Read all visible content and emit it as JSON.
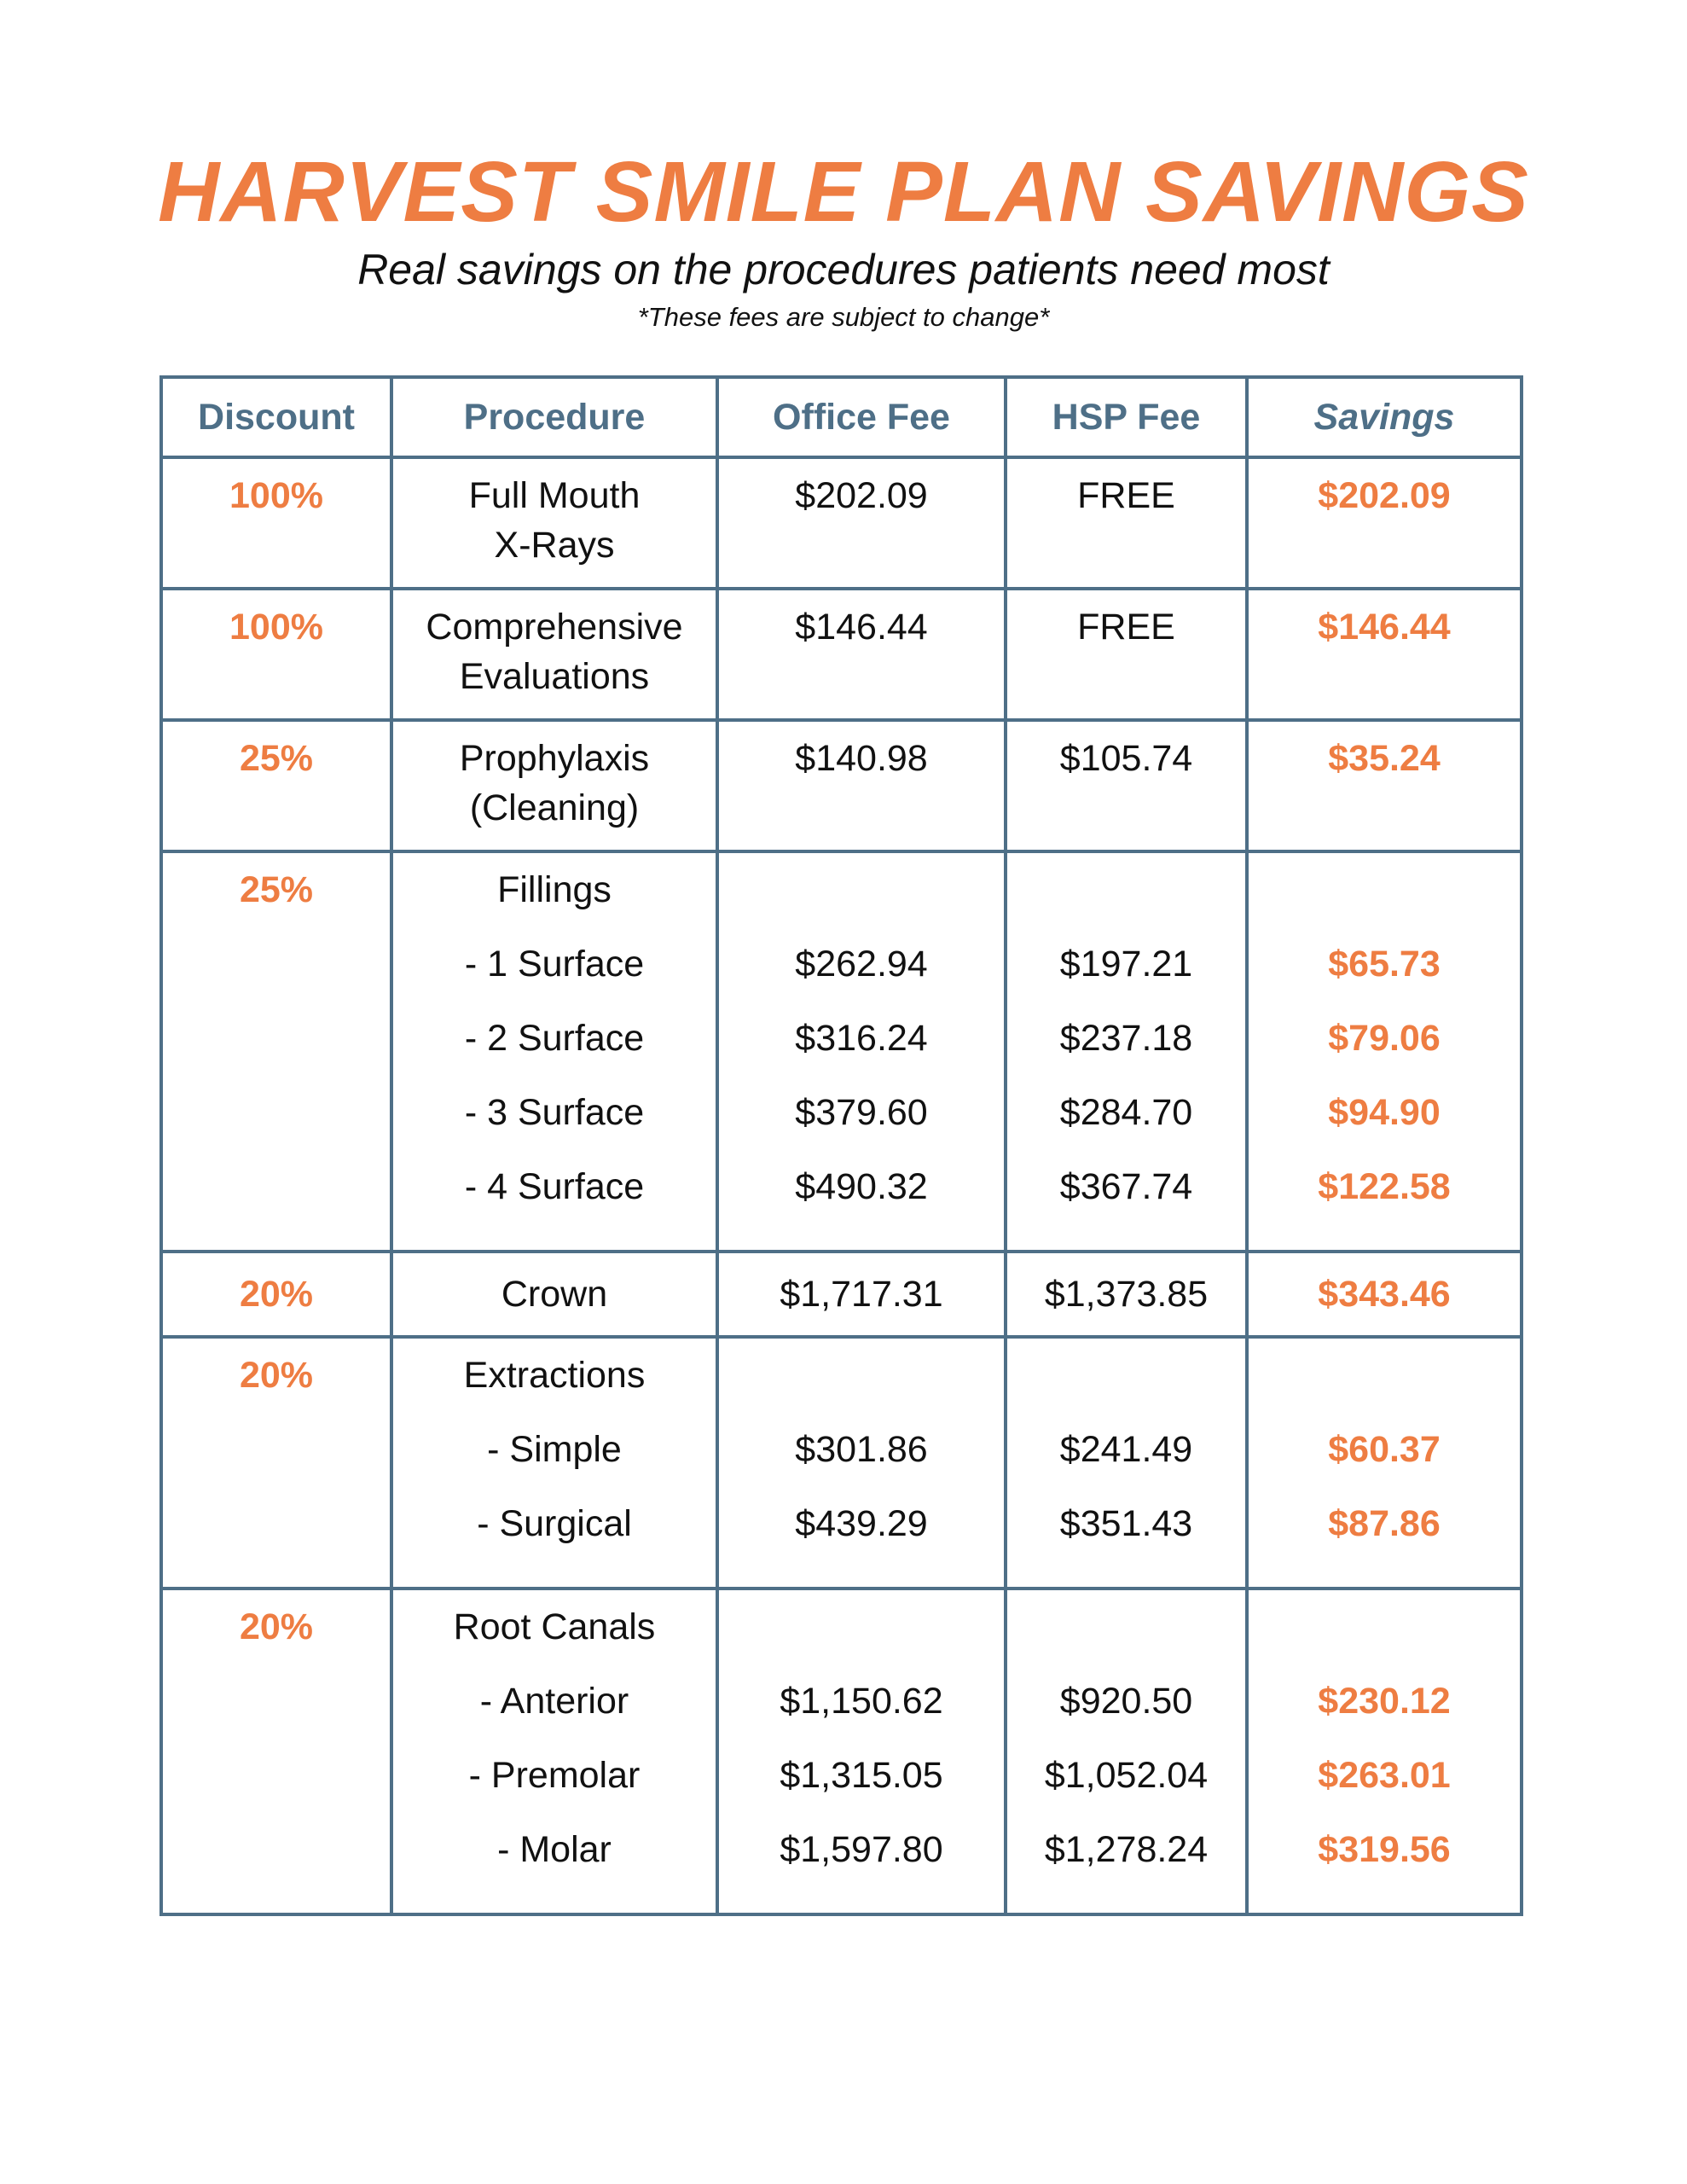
{
  "header": {
    "title": "HARVEST SMILE PLAN SAVINGS",
    "subtitle": "Real savings on the procedures patients need most",
    "note": "*These fees are subject to change*"
  },
  "table": {
    "columns": [
      "Discount",
      "Procedure",
      "Office Fee",
      "HSP Fee",
      "Savings"
    ],
    "rows": [
      {
        "discount": "100%",
        "procedure": [
          "Full Mouth",
          "X-Rays"
        ],
        "office_fee": "$202.09",
        "hsp_fee": "FREE",
        "savings": "$202.09"
      },
      {
        "discount": "100%",
        "procedure": [
          "Comprehensive",
          "Evaluations"
        ],
        "office_fee": "$146.44",
        "hsp_fee": "FREE",
        "savings": "$146.44"
      },
      {
        "discount": "25%",
        "procedure": [
          "Prophylaxis",
          "(Cleaning)"
        ],
        "office_fee": "$140.98",
        "hsp_fee": "$105.74",
        "savings": "$35.24"
      },
      {
        "discount": "25%",
        "procedure_title": "Fillings",
        "items": [
          {
            "label": "- 1 Surface",
            "office_fee": "$262.94",
            "hsp_fee": "$197.21",
            "savings": "$65.73"
          },
          {
            "label": "- 2 Surface",
            "office_fee": "$316.24",
            "hsp_fee": "$237.18",
            "savings": "$79.06"
          },
          {
            "label": "- 3 Surface",
            "office_fee": "$379.60",
            "hsp_fee": "$284.70",
            "savings": "$94.90"
          },
          {
            "label": "- 4 Surface",
            "office_fee": "$490.32",
            "hsp_fee": "$367.74",
            "savings": "$122.58"
          }
        ]
      },
      {
        "discount": "20%",
        "procedure": [
          "Crown"
        ],
        "office_fee": "$1,717.31",
        "hsp_fee": "$1,373.85",
        "savings": "$343.46"
      },
      {
        "discount": "20%",
        "procedure_title": "Extractions",
        "items": [
          {
            "label": "- Simple",
            "office_fee": "$301.86",
            "hsp_fee": "$241.49",
            "savings": "$60.37"
          },
          {
            "label": "- Surgical",
            "office_fee": "$439.29",
            "hsp_fee": "$351.43",
            "savings": "$87.86"
          }
        ]
      },
      {
        "discount": "20%",
        "procedure_title": "Root Canals",
        "items": [
          {
            "label": "- Anterior",
            "office_fee": "$1,150.62",
            "hsp_fee": "$920.50",
            "savings": "$230.12"
          },
          {
            "label": "- Premolar",
            "office_fee": "$1,315.05",
            "hsp_fee": "$1,052.04",
            "savings": "$263.01"
          },
          {
            "label": "- Molar",
            "office_fee": "$1,597.80",
            "hsp_fee": "$1,278.24",
            "savings": "$319.56"
          }
        ]
      }
    ]
  },
  "colors": {
    "accent": "#EE7D42",
    "border": "#4E6F87",
    "text": "#111111"
  }
}
